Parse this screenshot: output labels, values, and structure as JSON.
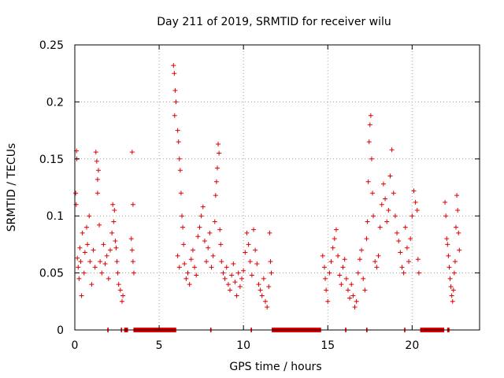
{
  "chart_data": {
    "type": "scatter",
    "title": "Day 211 of 2019, SRMTID for receiver wilu",
    "xlabel": "GPS time / hours",
    "ylabel": "SRMTID / TECUs",
    "xlim": [
      0,
      24
    ],
    "ylim": [
      0,
      0.25
    ],
    "x_ticks": [
      0,
      5,
      10,
      15,
      20
    ],
    "y_ticks": [
      0,
      0.05,
      0.1,
      0.15,
      0.2,
      0.25
    ],
    "x_tick_labels": [
      "0",
      "5",
      "10",
      "15",
      "20"
    ],
    "y_tick_labels": [
      "0",
      "0.05",
      "0.1",
      "0.15",
      "0.2",
      "0.25"
    ],
    "grid": true,
    "marker": "+",
    "color": "#e00000",
    "series": [
      {
        "name": "srmtid",
        "points": [
          [
            0.05,
            0.12
          ],
          [
            0.1,
            0.157
          ],
          [
            0.12,
            0.15
          ],
          [
            0.08,
            0.11
          ],
          [
            0.15,
            0.063
          ],
          [
            0.2,
            0.055
          ],
          [
            0.25,
            0.045
          ],
          [
            0.3,
            0.072
          ],
          [
            0.35,
            0.06
          ],
          [
            0.4,
            0.03
          ],
          [
            0.45,
            0.085
          ],
          [
            0.55,
            0.05
          ],
          [
            0.6,
            0.068
          ],
          [
            0.7,
            0.09
          ],
          [
            0.75,
            0.075
          ],
          [
            0.85,
            0.1
          ],
          [
            0.9,
            0.06
          ],
          [
            1.0,
            0.04
          ],
          [
            1.1,
            0.07
          ],
          [
            1.2,
            0.055
          ],
          [
            1.25,
            0.156
          ],
          [
            1.3,
            0.148
          ],
          [
            1.35,
            0.132
          ],
          [
            1.4,
            0.14
          ],
          [
            1.35,
            0.12
          ],
          [
            1.45,
            0.092
          ],
          [
            1.5,
            0.06
          ],
          [
            1.6,
            0.05
          ],
          [
            1.7,
            0.075
          ],
          [
            1.8,
            0.058
          ],
          [
            1.9,
            0.065
          ],
          [
            2.0,
            0.045
          ],
          [
            2.1,
            0.07
          ],
          [
            2.2,
            0.085
          ],
          [
            2.25,
            0.11
          ],
          [
            2.3,
            0.095
          ],
          [
            2.35,
            0.105
          ],
          [
            2.4,
            0.078
          ],
          [
            2.45,
            0.072
          ],
          [
            2.5,
            0.06
          ],
          [
            2.55,
            0.05
          ],
          [
            2.6,
            0.04
          ],
          [
            2.7,
            0.035
          ],
          [
            2.8,
            0.025
          ],
          [
            2.85,
            0.03
          ],
          [
            3.4,
            0.156
          ],
          [
            3.45,
            0.11
          ],
          [
            3.35,
            0.08
          ],
          [
            3.4,
            0.07
          ],
          [
            3.5,
            0.05
          ],
          [
            3.45,
            0.06
          ],
          [
            5.85,
            0.232
          ],
          [
            5.9,
            0.225
          ],
          [
            5.95,
            0.21
          ],
          [
            6.0,
            0.2
          ],
          [
            5.92,
            0.188
          ],
          [
            6.1,
            0.175
          ],
          [
            6.15,
            0.165
          ],
          [
            6.2,
            0.15
          ],
          [
            6.25,
            0.14
          ],
          [
            6.3,
            0.12
          ],
          [
            6.35,
            0.1
          ],
          [
            6.4,
            0.09
          ],
          [
            6.45,
            0.075
          ],
          [
            6.1,
            0.065
          ],
          [
            6.2,
            0.055
          ],
          [
            6.5,
            0.058
          ],
          [
            6.6,
            0.045
          ],
          [
            6.7,
            0.05
          ],
          [
            6.8,
            0.04
          ],
          [
            6.9,
            0.062
          ],
          [
            7.0,
            0.07
          ],
          [
            7.1,
            0.055
          ],
          [
            7.2,
            0.048
          ],
          [
            7.3,
            0.082
          ],
          [
            7.4,
            0.09
          ],
          [
            7.5,
            0.1
          ],
          [
            7.6,
            0.108
          ],
          [
            7.7,
            0.078
          ],
          [
            7.8,
            0.06
          ],
          [
            7.9,
            0.072
          ],
          [
            8.0,
            0.085
          ],
          [
            8.1,
            0.055
          ],
          [
            8.2,
            0.065
          ],
          [
            8.3,
            0.095
          ],
          [
            8.35,
            0.118
          ],
          [
            8.4,
            0.13
          ],
          [
            8.45,
            0.142
          ],
          [
            8.5,
            0.163
          ],
          [
            8.55,
            0.155
          ],
          [
            8.6,
            0.088
          ],
          [
            8.65,
            0.075
          ],
          [
            8.7,
            0.06
          ],
          [
            8.8,
            0.05
          ],
          [
            8.9,
            0.045
          ],
          [
            9.0,
            0.055
          ],
          [
            9.1,
            0.04
          ],
          [
            9.2,
            0.035
          ],
          [
            9.3,
            0.048
          ],
          [
            9.4,
            0.058
          ],
          [
            9.5,
            0.042
          ],
          [
            9.6,
            0.03
          ],
          [
            9.7,
            0.05
          ],
          [
            9.8,
            0.038
          ],
          [
            9.9,
            0.045
          ],
          [
            10.0,
            0.052
          ],
          [
            10.1,
            0.068
          ],
          [
            10.2,
            0.085
          ],
          [
            10.3,
            0.075
          ],
          [
            10.4,
            0.06
          ],
          [
            10.5,
            0.048
          ],
          [
            10.6,
            0.088
          ],
          [
            10.7,
            0.07
          ],
          [
            10.8,
            0.058
          ],
          [
            10.9,
            0.04
          ],
          [
            11.0,
            0.035
          ],
          [
            11.1,
            0.03
          ],
          [
            11.2,
            0.045
          ],
          [
            11.3,
            0.025
          ],
          [
            11.4,
            0.02
          ],
          [
            11.5,
            0.038
          ],
          [
            11.55,
            0.085
          ],
          [
            11.6,
            0.06
          ],
          [
            11.65,
            0.05
          ],
          [
            14.7,
            0.065
          ],
          [
            14.8,
            0.055
          ],
          [
            14.85,
            0.045
          ],
          [
            14.9,
            0.035
          ],
          [
            15.0,
            0.025
          ],
          [
            15.1,
            0.05
          ],
          [
            15.2,
            0.06
          ],
          [
            15.3,
            0.072
          ],
          [
            15.4,
            0.08
          ],
          [
            15.5,
            0.088
          ],
          [
            15.6,
            0.065
          ],
          [
            15.7,
            0.048
          ],
          [
            15.8,
            0.04
          ],
          [
            15.9,
            0.055
          ],
          [
            16.0,
            0.062
          ],
          [
            16.1,
            0.045
          ],
          [
            16.2,
            0.035
          ],
          [
            16.3,
            0.028
          ],
          [
            16.4,
            0.04
          ],
          [
            16.5,
            0.03
          ],
          [
            16.6,
            0.02
          ],
          [
            16.7,
            0.025
          ],
          [
            16.8,
            0.05
          ],
          [
            16.9,
            0.062
          ],
          [
            17.0,
            0.07
          ],
          [
            17.1,
            0.045
          ],
          [
            17.2,
            0.035
          ],
          [
            17.3,
            0.08
          ],
          [
            17.35,
            0.095
          ],
          [
            17.4,
            0.13
          ],
          [
            17.45,
            0.165
          ],
          [
            17.5,
            0.18
          ],
          [
            17.55,
            0.188
          ],
          [
            17.6,
            0.15
          ],
          [
            17.65,
            0.12
          ],
          [
            17.7,
            0.1
          ],
          [
            17.8,
            0.06
          ],
          [
            17.9,
            0.055
          ],
          [
            18.0,
            0.065
          ],
          [
            18.1,
            0.09
          ],
          [
            18.2,
            0.11
          ],
          [
            18.3,
            0.128
          ],
          [
            18.4,
            0.115
          ],
          [
            18.5,
            0.095
          ],
          [
            18.6,
            0.105
          ],
          [
            18.7,
            0.135
          ],
          [
            18.8,
            0.158
          ],
          [
            18.9,
            0.12
          ],
          [
            19.0,
            0.1
          ],
          [
            19.1,
            0.085
          ],
          [
            19.2,
            0.078
          ],
          [
            19.3,
            0.068
          ],
          [
            19.4,
            0.055
          ],
          [
            19.5,
            0.05
          ],
          [
            19.6,
            0.09
          ],
          [
            19.7,
            0.072
          ],
          [
            19.8,
            0.06
          ],
          [
            19.9,
            0.08
          ],
          [
            20.0,
            0.1
          ],
          [
            20.1,
            0.122
          ],
          [
            20.2,
            0.112
          ],
          [
            20.3,
            0.105
          ],
          [
            20.35,
            0.062
          ],
          [
            20.4,
            0.05
          ],
          [
            21.95,
            0.112
          ],
          [
            22.0,
            0.1
          ],
          [
            22.05,
            0.08
          ],
          [
            22.1,
            0.075
          ],
          [
            22.15,
            0.065
          ],
          [
            22.2,
            0.055
          ],
          [
            22.25,
            0.045
          ],
          [
            22.3,
            0.038
          ],
          [
            22.35,
            0.03
          ],
          [
            22.4,
            0.025
          ],
          [
            22.45,
            0.035
          ],
          [
            22.5,
            0.05
          ],
          [
            22.55,
            0.06
          ],
          [
            22.6,
            0.09
          ],
          [
            22.65,
            0.118
          ],
          [
            22.7,
            0.105
          ],
          [
            22.75,
            0.085
          ],
          [
            22.8,
            0.07
          ]
        ]
      }
    ],
    "zero_runs": [
      [
        1.95,
        2.0
      ],
      [
        2.75,
        2.8
      ],
      [
        2.95,
        3.15
      ],
      [
        3.5,
        6.0
      ],
      [
        8.05,
        8.1
      ],
      [
        10.45,
        10.5
      ],
      [
        11.7,
        14.6
      ],
      [
        16.05,
        16.1
      ],
      [
        17.3,
        17.35
      ],
      [
        19.55,
        19.6
      ],
      [
        20.5,
        21.9
      ],
      [
        22.1,
        22.2
      ]
    ]
  }
}
